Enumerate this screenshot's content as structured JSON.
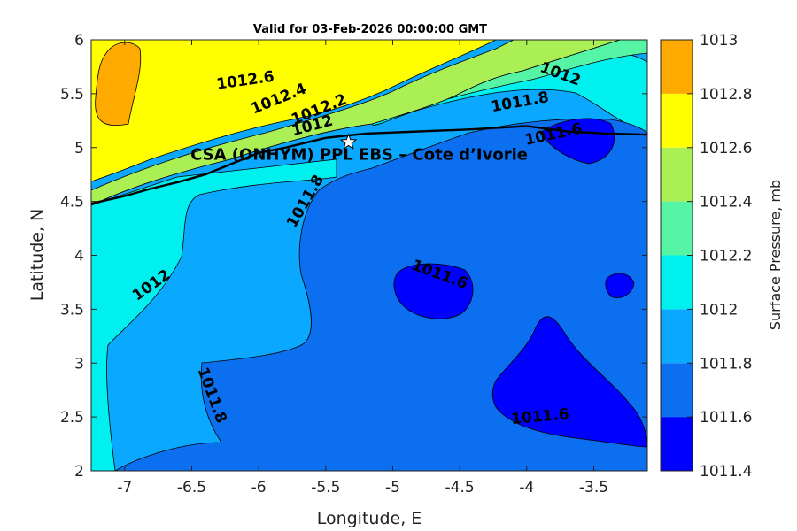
{
  "chart_data": {
    "type": "contour",
    "title": "Valid for 03-Feb-2026 00:00:00 GMT",
    "xlabel": "Longitude, E",
    "ylabel": "Latitude, N",
    "xlim": [
      -7.25,
      -3.1
    ],
    "ylim": [
      2,
      6
    ],
    "xticks": [
      -7,
      -6.5,
      -6,
      -5.5,
      -5,
      -4.5,
      -4,
      -3.5
    ],
    "xtick_labels": [
      "-7",
      "-6.5",
      "-6",
      "-5.5",
      "-5",
      "-4.5",
      "-4",
      "-3.5"
    ],
    "yticks": [
      2,
      2.5,
      3,
      3.5,
      4,
      4.5,
      5,
      5.5,
      6
    ],
    "ytick_labels": [
      "2",
      "2.5",
      "3",
      "3.5",
      "4",
      "4.5",
      "5",
      "5.5",
      "6"
    ],
    "levels": [
      1011.4,
      1011.6,
      1011.8,
      1012,
      1012.2,
      1012.4,
      1012.6,
      1012.8,
      1013
    ],
    "level_labels": [
      "1011.4",
      "1011.6",
      "1011.8",
      "1012",
      "1012.2",
      "1012.4",
      "1012.6",
      "1012.8",
      "1013"
    ],
    "level_colors": [
      "#0000ff",
      "#0b6ff0",
      "#0aa9ff",
      "#00f0f0",
      "#55f5a5",
      "#aaf055",
      "#ffff00",
      "#ffaa00",
      "#ff5500"
    ],
    "colorbar_label": "Surface Pressure, mb",
    "contour_labels": [
      {
        "text": "1012.6",
        "lon": -6.1,
        "lat": 5.62
      },
      {
        "text": "1012.4",
        "lon": -5.85,
        "lat": 5.45
      },
      {
        "text": "1012.2",
        "lon": -5.55,
        "lat": 5.35
      },
      {
        "text": "1012",
        "lon": -5.6,
        "lat": 5.2
      },
      {
        "text": "1012",
        "lon": -3.75,
        "lat": 5.68
      },
      {
        "text": "1011.8",
        "lon": -4.05,
        "lat": 5.42
      },
      {
        "text": "1011.6",
        "lon": -3.8,
        "lat": 5.12
      },
      {
        "text": "1011.8",
        "lon": -5.65,
        "lat": 4.5
      },
      {
        "text": "1012",
        "lon": -6.8,
        "lat": 3.72
      },
      {
        "text": "1011.6",
        "lon": -4.65,
        "lat": 3.82
      },
      {
        "text": "1011.8",
        "lon": -6.35,
        "lat": 2.7
      },
      {
        "text": "1011.6",
        "lon": -3.9,
        "lat": 2.5
      }
    ],
    "site": {
      "name": "CSA (ONHYM) PPL EBS  – Cote d’Ivorie",
      "lon": -5.33,
      "lat": 5.05
    },
    "coastline": [
      [
        -7.25,
        4.48
      ],
      [
        -7.0,
        4.55
      ],
      [
        -6.8,
        4.62
      ],
      [
        -6.6,
        4.68
      ],
      [
        -6.4,
        4.75
      ],
      [
        -6.2,
        4.85
      ],
      [
        -6.0,
        4.95
      ],
      [
        -5.8,
        5.0
      ],
      [
        -5.5,
        5.09
      ],
      [
        -5.2,
        5.13
      ],
      [
        -4.8,
        5.15
      ],
      [
        -4.4,
        5.17
      ],
      [
        -4.0,
        5.2
      ],
      [
        -3.7,
        5.15
      ],
      [
        -3.4,
        5.13
      ],
      [
        -3.1,
        5.12
      ]
    ]
  }
}
